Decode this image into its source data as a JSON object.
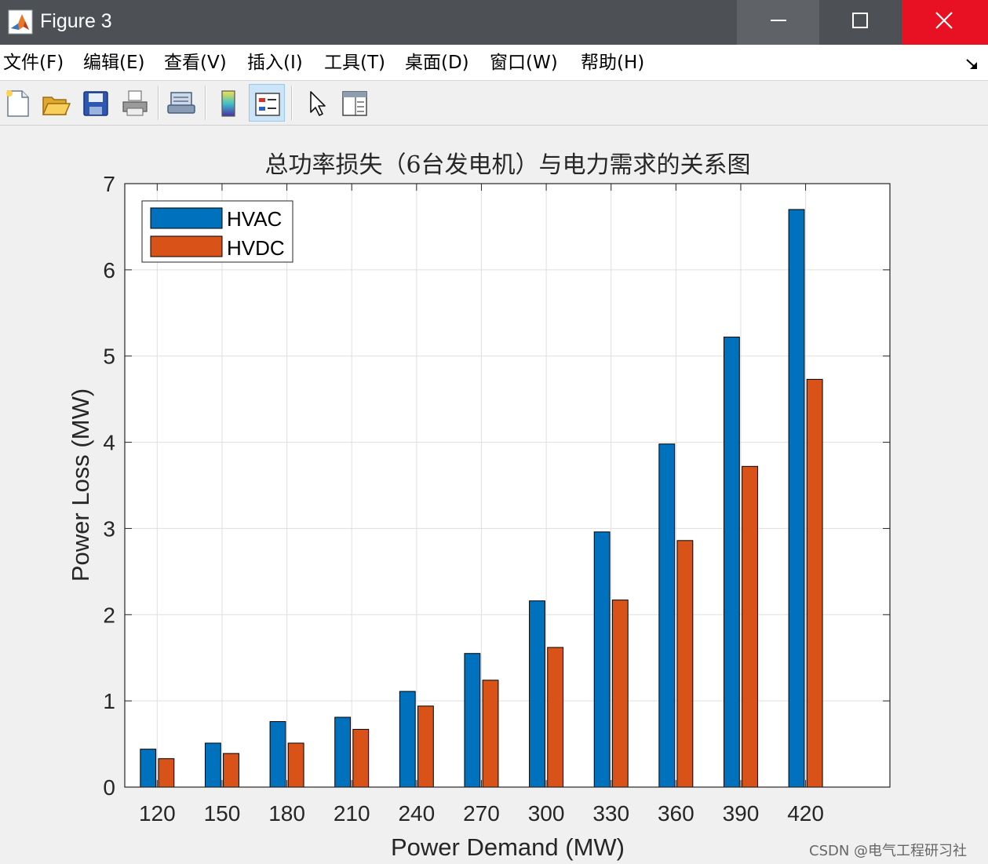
{
  "window": {
    "title": "Figure 3",
    "icon": "matlab-icon",
    "controls": [
      "minimize-icon",
      "maximize-icon",
      "close-icon"
    ]
  },
  "menu": [
    {
      "label": "文件(F)"
    },
    {
      "label": "编辑(E)"
    },
    {
      "label": "查看(V)"
    },
    {
      "label": "插入(I)"
    },
    {
      "label": "工具(T)"
    },
    {
      "label": "桌面(D)"
    },
    {
      "label": "窗口(W)"
    },
    {
      "label": "帮助(H)"
    }
  ],
  "toolbar": {
    "buttons": [
      "new-figure-icon",
      "open-file-icon",
      "save-icon",
      "print-icon",
      "print-preview-icon",
      "colorbar-icon",
      "legend-icon",
      "pointer-icon",
      "property-editor-icon"
    ],
    "active": "legend-icon"
  },
  "chart_data": {
    "type": "bar",
    "title": "总功率损失（6台发电机）与电力需求的关系图",
    "xlabel": "Power Demand (MW)",
    "ylabel": "Power Loss (MW)",
    "categories": [
      "120",
      "150",
      "180",
      "210",
      "240",
      "270",
      "300",
      "330",
      "360",
      "390",
      "420"
    ],
    "series": [
      {
        "name": "HVAC",
        "color": "#0072bd",
        "values": [
          0.44,
          0.51,
          0.76,
          0.81,
          1.11,
          1.55,
          2.16,
          2.96,
          3.98,
          5.22,
          6.7
        ]
      },
      {
        "name": "HVDC",
        "color": "#d95319",
        "values": [
          0.33,
          0.39,
          0.51,
          0.67,
          0.94,
          1.24,
          1.62,
          2.17,
          2.86,
          3.72,
          4.73
        ]
      }
    ],
    "ylim": [
      0,
      7
    ],
    "yticks": [
      "0",
      "1",
      "2",
      "3",
      "4",
      "5",
      "6",
      "7"
    ],
    "grid": true,
    "legend": "top-left"
  },
  "watermark": "CSDN @电气工程研习社"
}
